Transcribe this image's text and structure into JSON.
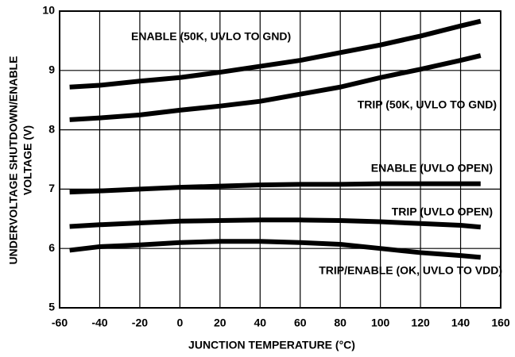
{
  "chart_data": {
    "type": "line",
    "x_label": "JUNCTION TEMPERATURE (°C)",
    "y_label": [
      "UNDERVOLTAGE SHUTDOWN/ENABLE",
      "VOLTAGE (V)"
    ],
    "x": [
      -55,
      -40,
      -20,
      0,
      20,
      40,
      60,
      80,
      100,
      120,
      140,
      150
    ],
    "series": [
      {
        "name": "ENABLE (50K, UVLO TO GND)",
        "color": "#000000",
        "values": [
          8.72,
          8.75,
          8.82,
          8.88,
          8.97,
          9.07,
          9.17,
          9.3,
          9.43,
          9.58,
          9.75,
          9.83
        ]
      },
      {
        "name": "TRIP (50K, UVLO TO GND)",
        "color": "#000000",
        "values": [
          8.17,
          8.2,
          8.25,
          8.33,
          8.4,
          8.48,
          8.6,
          8.72,
          8.88,
          9.02,
          9.17,
          9.25
        ]
      },
      {
        "name": "ENABLE (UVLO OPEN)",
        "color": "#000000",
        "values": [
          6.95,
          6.97,
          7.0,
          7.03,
          7.05,
          7.07,
          7.08,
          7.08,
          7.09,
          7.09,
          7.09,
          7.09
        ]
      },
      {
        "name": "TRIP (UVLO OPEN)",
        "color": "#000000",
        "values": [
          6.37,
          6.4,
          6.43,
          6.46,
          6.47,
          6.48,
          6.48,
          6.47,
          6.45,
          6.42,
          6.39,
          6.36
        ]
      },
      {
        "name": "TRIP/ENABLE (OK, UVLO TO VDD)",
        "color": "#000000",
        "values": [
          5.97,
          6.03,
          6.06,
          6.1,
          6.12,
          6.12,
          6.1,
          6.07,
          6.0,
          5.93,
          5.88,
          5.85
        ]
      }
    ],
    "xlim": [
      -60,
      160
    ],
    "xticks": [
      -60,
      -40,
      -20,
      0,
      20,
      40,
      60,
      80,
      100,
      120,
      140,
      160
    ],
    "ylim": [
      5,
      10
    ],
    "yticks": [
      5,
      6,
      7,
      8,
      9,
      10
    ],
    "grid": true
  }
}
